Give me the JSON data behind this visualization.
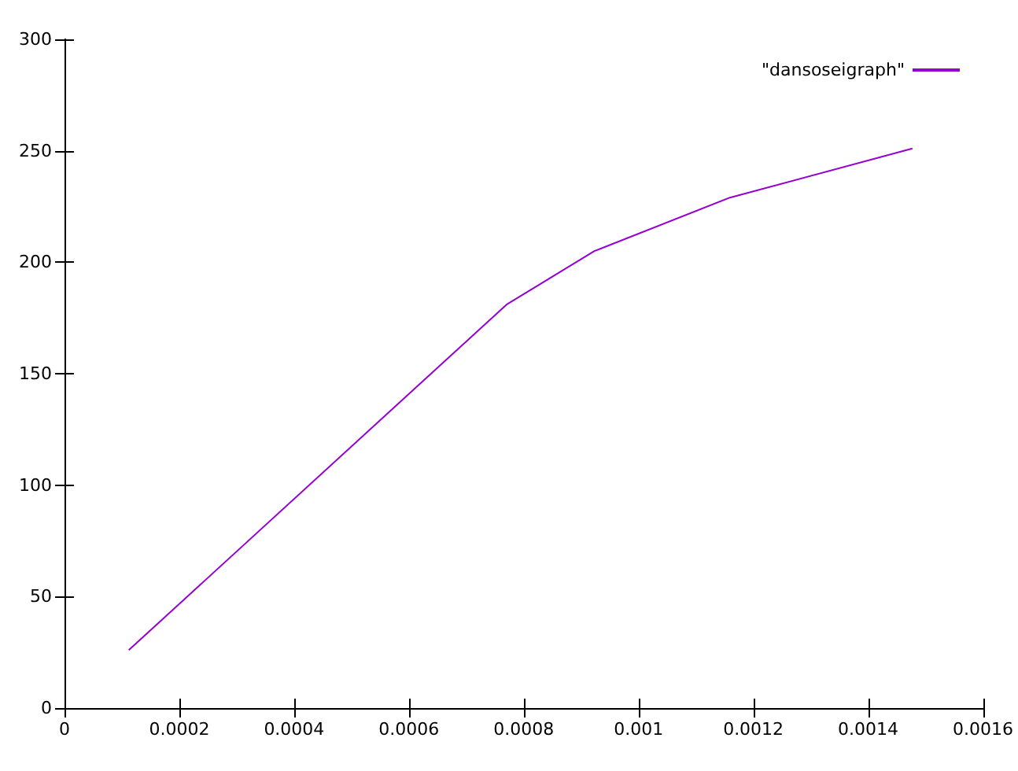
{
  "chart_data": {
    "type": "line",
    "x": [
      0.000112,
      0.00077,
      0.000923,
      0.001159,
      0.001477
    ],
    "series": [
      {
        "name": "\"dansoseigraph\"",
        "color": "#9400d3",
        "values": [
          26,
          181,
          205,
          229,
          251
        ]
      }
    ],
    "xlim": [
      0,
      0.0016
    ],
    "xticks": [
      0,
      0.0002,
      0.0004,
      0.0006,
      0.0008,
      0.001,
      0.0012,
      0.0014,
      0.0016
    ],
    "ylim": [
      0,
      300
    ],
    "yticks": [
      0,
      50,
      100,
      150,
      200,
      250,
      300
    ],
    "grid": false,
    "legend": "top right",
    "marker": "none",
    "line_style": "solid"
  }
}
